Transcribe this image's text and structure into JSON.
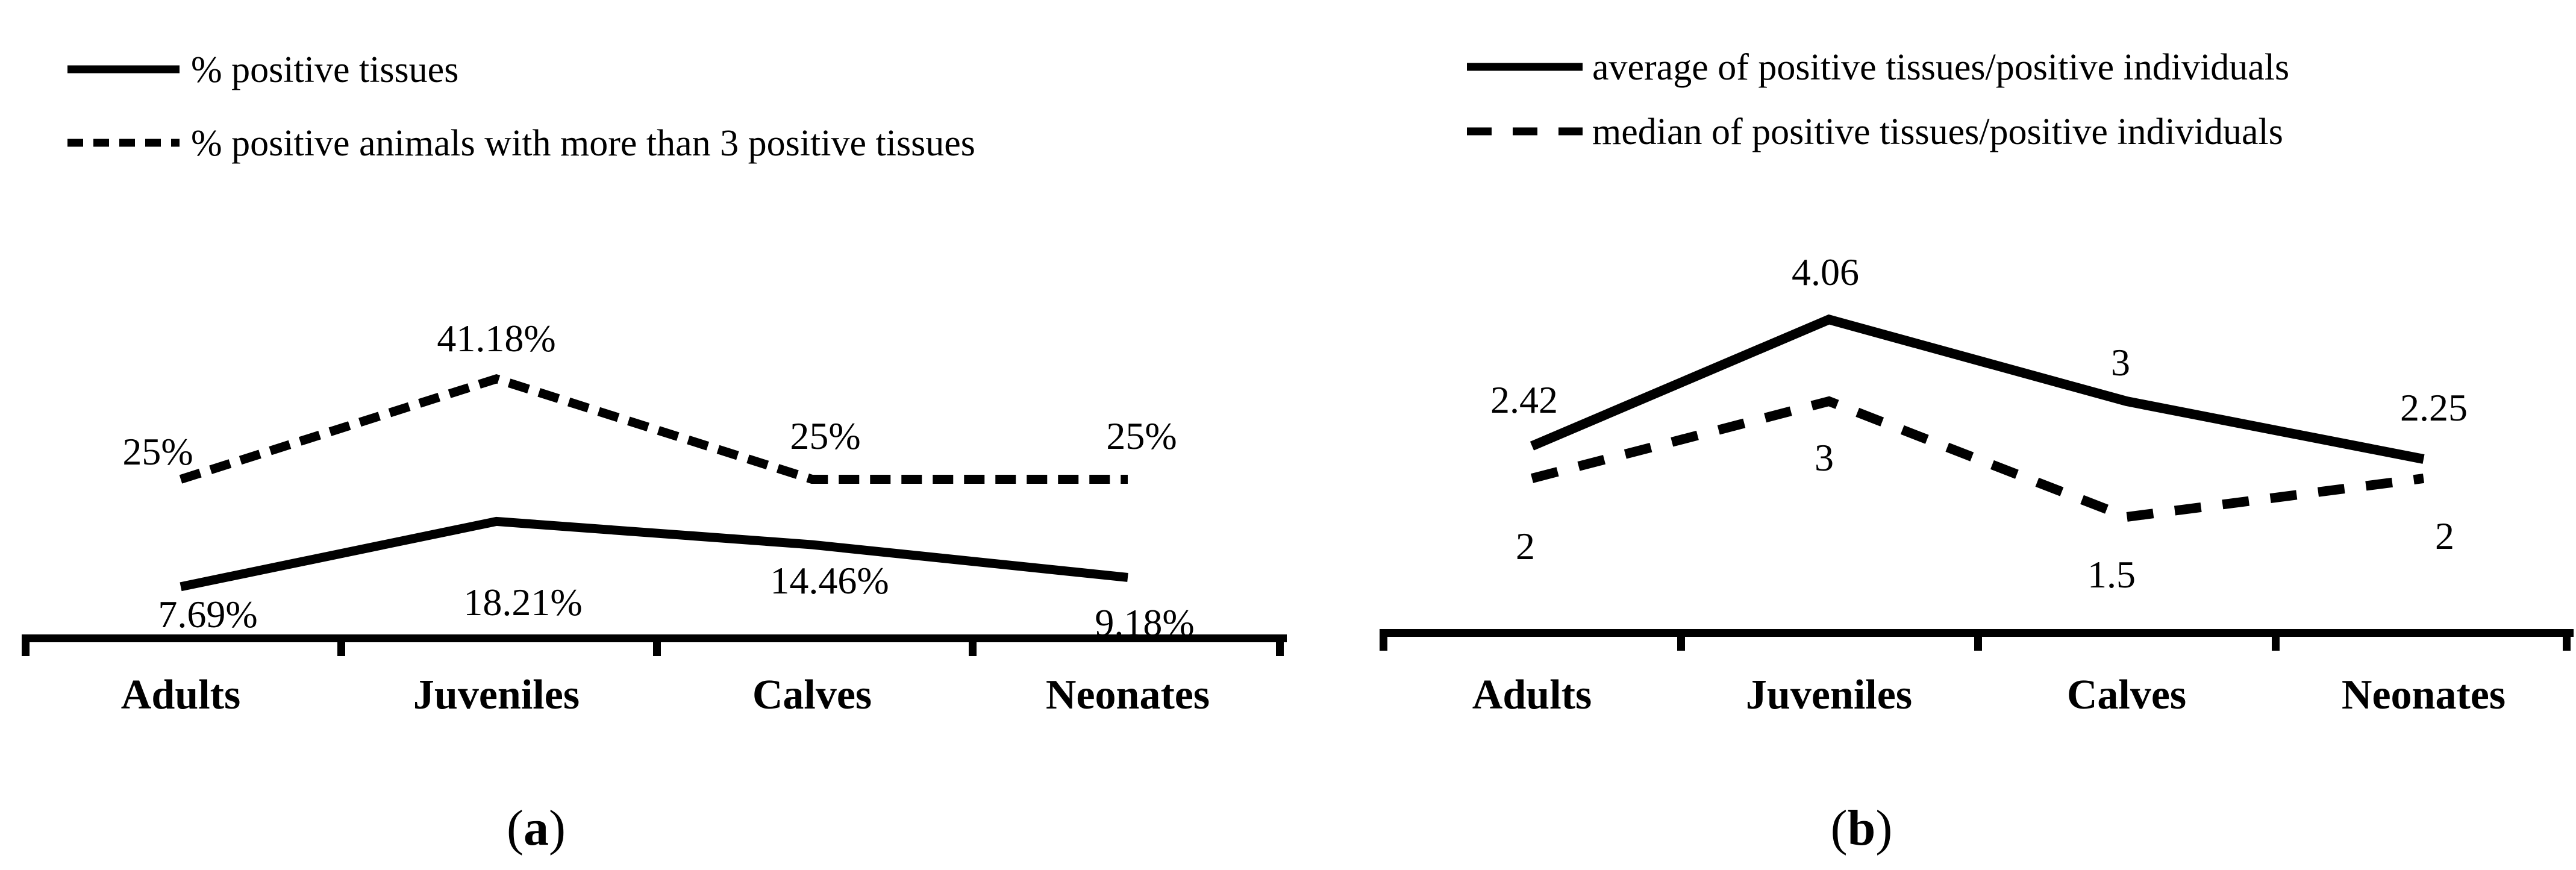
{
  "figure": {
    "background": "#ffffff",
    "ink_color": "#000000"
  },
  "chart_data": [
    {
      "panel": "a",
      "type": "line",
      "caption": "(a)",
      "categories": [
        "Adults",
        "Juveniles",
        "Calves",
        "Neonates"
      ],
      "legend_position": "top-left",
      "grid": false,
      "y_axis_visible": false,
      "ylim": [
        0,
        50
      ],
      "series": [
        {
          "name": "% positive tissues",
          "line_style": "solid",
          "values": [
            7.69,
            18.21,
            14.46,
            9.18
          ],
          "point_labels": [
            "7.69%",
            "18.21%",
            "14.46%",
            "9.18%"
          ]
        },
        {
          "name": "% positive animals with more than 3 positive tissues",
          "line_style": "dashed",
          "values": [
            25,
            41.18,
            25,
            25
          ],
          "point_labels": [
            "25%",
            "41.18%",
            "25%",
            "25%"
          ]
        }
      ]
    },
    {
      "panel": "b",
      "type": "line",
      "caption": "(b)",
      "categories": [
        "Adults",
        "Juveniles",
        "Calves",
        "Neonates"
      ],
      "legend_position": "top-left",
      "grid": false,
      "y_axis_visible": false,
      "ylim": [
        0,
        5
      ],
      "series": [
        {
          "name": "average of positive tissues/positive individuals",
          "line_style": "solid",
          "values": [
            2.42,
            4.06,
            3,
            2.25
          ],
          "point_labels": [
            "2.42",
            "4.06",
            "3",
            "2.25"
          ]
        },
        {
          "name": "median of positive tissues/positive individuals",
          "line_style": "dashed",
          "values": [
            2,
            3,
            1.5,
            2
          ],
          "point_labels": [
            "2",
            "3",
            "1.5",
            "2"
          ]
        }
      ]
    }
  ]
}
